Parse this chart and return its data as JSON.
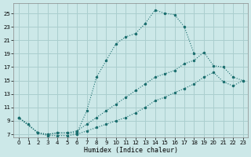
{
  "xlabel": "Humidex (Indice chaleur)",
  "bg_color": "#cce8e8",
  "grid_color": "#aacece",
  "line_color": "#1a6e6e",
  "xlim": [
    -0.5,
    23.5
  ],
  "ylim": [
    6.5,
    26.5
  ],
  "xticks": [
    0,
    1,
    2,
    3,
    4,
    5,
    6,
    7,
    8,
    9,
    10,
    11,
    12,
    13,
    14,
    15,
    16,
    17,
    18,
    19,
    20,
    21,
    22,
    23
  ],
  "yticks": [
    7,
    9,
    11,
    13,
    15,
    17,
    19,
    21,
    23,
    25
  ],
  "curve1_x": [
    0,
    1,
    2,
    3,
    4,
    5,
    6,
    7,
    8,
    9,
    10,
    11,
    12,
    13,
    14,
    15,
    16,
    17,
    18
  ],
  "curve1_y": [
    9.5,
    8.5,
    7.2,
    7.0,
    7.2,
    7.2,
    7.2,
    10.5,
    15.5,
    18.0,
    20.5,
    21.5,
    22.0,
    23.5,
    25.5,
    25.0,
    24.8,
    23.0,
    19.0
  ],
  "curve2_x": [
    0,
    2,
    3,
    4,
    5,
    6,
    7,
    8,
    9,
    10,
    11,
    12,
    13,
    14,
    15,
    16,
    17,
    18,
    19,
    20,
    21,
    22,
    23
  ],
  "curve2_y": [
    9.5,
    7.2,
    7.0,
    7.2,
    7.2,
    7.5,
    8.5,
    9.5,
    10.5,
    11.5,
    12.5,
    13.5,
    14.5,
    15.5,
    16.0,
    16.5,
    17.5,
    18.0,
    19.2,
    17.2,
    17.0,
    15.5,
    15.0
  ],
  "curve3_x": [
    0,
    2,
    3,
    4,
    5,
    6,
    7,
    8,
    9,
    10,
    11,
    12,
    13,
    14,
    15,
    16,
    17,
    18,
    19,
    20,
    21,
    22,
    23
  ],
  "curve3_y": [
    9.5,
    7.2,
    6.8,
    6.8,
    6.8,
    7.0,
    7.5,
    8.0,
    8.5,
    9.0,
    9.5,
    10.2,
    11.0,
    12.0,
    12.5,
    13.2,
    13.8,
    14.5,
    15.5,
    16.2,
    14.8,
    14.2,
    15.0
  ]
}
